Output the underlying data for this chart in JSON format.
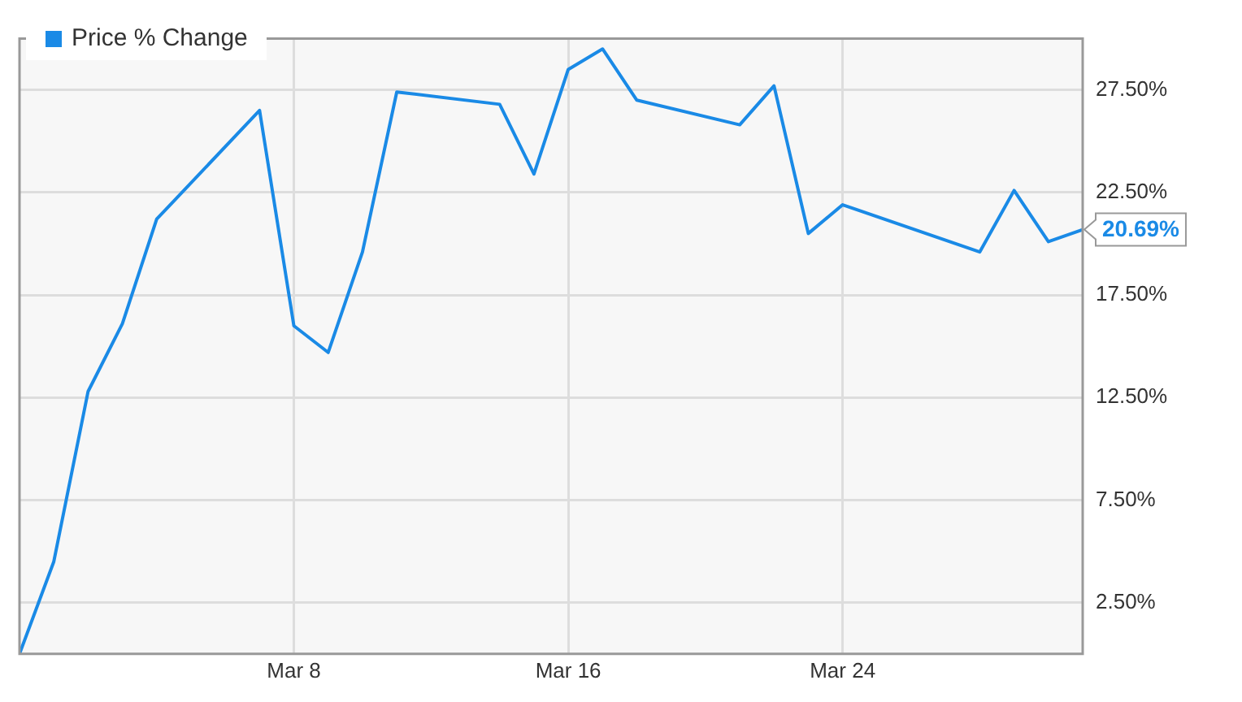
{
  "chart_data": {
    "type": "line",
    "legend": "top left",
    "grid": true,
    "marker": "none",
    "line_style": "solid",
    "x": [
      "--02-29",
      "--03-01",
      "--03-02",
      "--03-03",
      "--03-04",
      "--03-07",
      "--03-08",
      "--03-09",
      "--03-10",
      "--03-11",
      "--03-14",
      "--03-15",
      "--03-16",
      "--03-17",
      "--03-18",
      "--03-21",
      "--03-22",
      "--03-23",
      "--03-24",
      "--03-28",
      "--03-29",
      "--03-30",
      "--03-31"
    ],
    "series": [
      {
        "name": "Price % Change",
        "color": "#1a8ae6",
        "values": [
          0,
          4.5,
          12.8,
          16.1,
          21.2,
          26.5,
          16.0,
          14.7,
          19.6,
          27.4,
          26.8,
          23.4,
          28.5,
          29.5,
          27.0,
          25.8,
          27.7,
          20.5,
          21.9,
          19.6,
          22.6,
          20.1,
          20.69
        ],
        "value_labels": [
          null,
          null,
          null,
          null,
          null,
          null,
          null,
          null,
          null,
          null,
          null,
          null,
          null,
          null,
          null,
          null,
          null,
          null,
          null,
          null,
          null,
          null,
          "20.69%"
        ]
      }
    ],
    "xlim": [
      "--02-29",
      "--03-31"
    ],
    "xticks": [
      {
        "value": "--03-08",
        "label": "Mar 8"
      },
      {
        "value": "--03-16",
        "label": "Mar 16"
      },
      {
        "value": "--03-24",
        "label": "Mar 24"
      }
    ],
    "ylim": [
      0,
      30
    ],
    "yticks": [
      {
        "value": 2.5,
        "label": "2.50%"
      },
      {
        "value": 7.5,
        "label": "7.50%"
      },
      {
        "value": 12.5,
        "label": "12.50%"
      },
      {
        "value": 17.5,
        "label": "17.50%"
      },
      {
        "value": 22.5,
        "label": "22.50%"
      },
      {
        "value": 27.5,
        "label": "27.50%"
      }
    ]
  }
}
